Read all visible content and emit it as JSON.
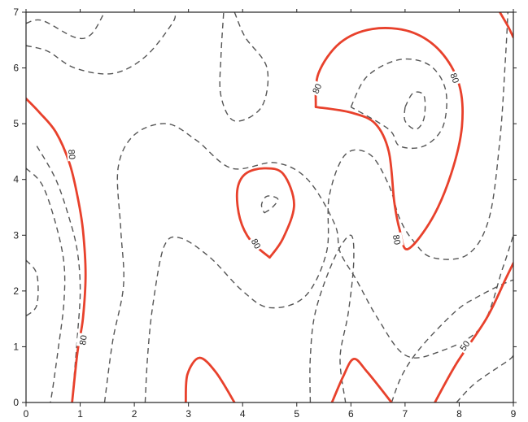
{
  "chart_data": {
    "type": "contour",
    "title": "",
    "xlabel": "",
    "ylabel": "",
    "xlim": [
      0,
      9
    ],
    "ylim": [
      0,
      7
    ],
    "x_ticks": [
      "0",
      "1",
      "2",
      "3",
      "4",
      "5",
      "6",
      "7",
      "8",
      "9"
    ],
    "y_ticks": [
      "0",
      "1",
      "2",
      "3",
      "4",
      "5",
      "6",
      "7"
    ],
    "grid": false,
    "colors": {
      "highlight": "#e8412c",
      "dashed": "#555555",
      "axis": "#222222"
    },
    "contours": [
      {
        "style": "dashed",
        "points": [
          [
            0.0,
            6.8
          ],
          [
            0.3,
            6.85
          ],
          [
            0.9,
            6.55
          ],
          [
            1.2,
            6.6
          ],
          [
            1.45,
            7.0
          ]
        ]
      },
      {
        "style": "dashed",
        "points": [
          [
            0.0,
            6.4
          ],
          [
            0.4,
            6.3
          ],
          [
            0.9,
            6.0
          ],
          [
            1.6,
            5.9
          ],
          [
            2.2,
            6.2
          ],
          [
            2.7,
            6.8
          ],
          [
            2.75,
            7.0
          ]
        ]
      },
      {
        "style": "dashed",
        "points": [
          [
            0.2,
            4.6
          ],
          [
            0.55,
            4.0
          ],
          [
            0.8,
            3.3
          ],
          [
            0.95,
            2.7
          ],
          [
            1.0,
            2.0
          ],
          [
            0.95,
            1.2
          ],
          [
            0.9,
            0.6
          ],
          [
            0.85,
            0.0
          ]
        ]
      },
      {
        "style": "dashed",
        "points": [
          [
            0.0,
            4.2
          ],
          [
            0.3,
            3.9
          ],
          [
            0.55,
            3.2
          ],
          [
            0.7,
            2.5
          ],
          [
            0.7,
            1.8
          ],
          [
            0.6,
            1.0
          ],
          [
            0.5,
            0.3
          ],
          [
            0.45,
            0.0
          ]
        ]
      },
      {
        "style": "dashed",
        "points": [
          [
            0.0,
            2.55
          ],
          [
            0.2,
            2.3
          ],
          [
            0.2,
            1.75
          ],
          [
            0.0,
            1.55
          ]
        ]
      },
      {
        "style": "dashed",
        "points": [
          [
            1.45,
            0.0
          ],
          [
            1.6,
            1.1
          ],
          [
            1.8,
            2.1
          ],
          [
            1.75,
            3.1
          ],
          [
            1.7,
            4.2
          ],
          [
            2.0,
            4.8
          ],
          [
            2.6,
            5.0
          ],
          [
            3.15,
            4.7
          ],
          [
            3.8,
            4.2
          ],
          [
            4.6,
            4.3
          ],
          [
            5.2,
            4.0
          ],
          [
            5.7,
            3.2
          ],
          [
            5.8,
            2.7
          ],
          [
            6.1,
            2.2
          ],
          [
            6.5,
            1.5
          ],
          [
            7.0,
            0.85
          ],
          [
            7.6,
            0.9
          ],
          [
            8.4,
            1.35
          ],
          [
            8.8,
            2.4
          ],
          [
            9.0,
            3.0
          ]
        ]
      },
      {
        "style": "dashed",
        "points": [
          [
            2.2,
            0.0
          ],
          [
            2.25,
            0.9
          ],
          [
            2.35,
            1.8
          ],
          [
            2.55,
            2.8
          ],
          [
            2.85,
            2.95
          ],
          [
            3.4,
            2.6
          ],
          [
            4.0,
            2.0
          ],
          [
            4.5,
            1.7
          ],
          [
            5.15,
            1.9
          ],
          [
            5.55,
            2.7
          ],
          [
            5.6,
            3.7
          ],
          [
            5.9,
            4.45
          ],
          [
            6.35,
            4.45
          ],
          [
            6.7,
            3.9
          ],
          [
            6.9,
            3.3
          ],
          [
            7.15,
            2.9
          ],
          [
            7.5,
            2.6
          ],
          [
            8.15,
            2.65
          ],
          [
            8.55,
            3.3
          ],
          [
            8.75,
            4.7
          ],
          [
            8.85,
            6.1
          ],
          [
            8.9,
            7.0
          ]
        ]
      },
      {
        "style": "dashed",
        "points": [
          [
            5.25,
            0.0
          ],
          [
            5.25,
            0.8
          ],
          [
            5.35,
            1.65
          ],
          [
            5.7,
            2.6
          ],
          [
            6.0,
            3.0
          ],
          [
            6.05,
            2.5
          ],
          [
            5.95,
            1.6
          ],
          [
            5.8,
            0.8
          ],
          [
            5.9,
            0.0
          ]
        ]
      },
      {
        "style": "dashed",
        "points": [
          [
            6.75,
            0.0
          ],
          [
            6.95,
            0.5
          ],
          [
            7.3,
            1.0
          ],
          [
            7.95,
            1.65
          ],
          [
            8.35,
            1.9
          ],
          [
            8.75,
            2.1
          ],
          [
            9.0,
            2.2
          ]
        ]
      },
      {
        "style": "dashed",
        "points": [
          [
            7.95,
            0.0
          ],
          [
            8.3,
            0.35
          ],
          [
            8.9,
            0.75
          ],
          [
            9.0,
            0.85
          ]
        ]
      },
      {
        "style": "dashed",
        "points": [
          [
            3.85,
            7.0
          ],
          [
            4.05,
            6.55
          ],
          [
            4.45,
            6.0
          ],
          [
            4.35,
            5.3
          ],
          [
            3.85,
            5.05
          ],
          [
            3.6,
            5.5
          ],
          [
            3.6,
            6.2
          ],
          [
            3.65,
            7.0
          ]
        ]
      },
      {
        "style": "dashed",
        "points": [
          [
            4.4,
            3.4
          ],
          [
            4.55,
            3.5
          ],
          [
            4.65,
            3.65
          ],
          [
            4.45,
            3.7
          ],
          [
            4.35,
            3.55
          ],
          [
            4.4,
            3.4
          ]
        ]
      },
      {
        "style": "dashed",
        "points": [
          [
            6.0,
            5.3
          ],
          [
            6.3,
            5.85
          ],
          [
            6.9,
            6.15
          ],
          [
            7.45,
            6.05
          ],
          [
            7.75,
            5.6
          ],
          [
            7.7,
            4.95
          ],
          [
            7.35,
            4.6
          ],
          [
            6.9,
            4.6
          ],
          [
            6.7,
            4.9
          ],
          [
            6.0,
            5.3
          ]
        ]
      },
      {
        "style": "dashed",
        "points": [
          [
            7.0,
            5.3
          ],
          [
            7.15,
            5.55
          ],
          [
            7.35,
            5.5
          ],
          [
            7.35,
            5.1
          ],
          [
            7.2,
            4.9
          ],
          [
            7.0,
            5.05
          ],
          [
            7.0,
            5.3
          ]
        ]
      },
      {
        "style": "solid",
        "points": [
          [
            0.0,
            5.45
          ],
          [
            0.25,
            5.2
          ],
          [
            0.55,
            4.85
          ],
          [
            0.8,
            4.3
          ],
          [
            0.95,
            3.7
          ],
          [
            1.05,
            3.1
          ],
          [
            1.1,
            2.3
          ],
          [
            1.05,
            1.5
          ],
          [
            0.95,
            0.9
          ],
          [
            0.85,
            0.0
          ]
        ]
      },
      {
        "style": "solid",
        "points": [
          [
            4.5,
            2.6
          ],
          [
            4.15,
            2.9
          ],
          [
            3.95,
            3.3
          ],
          [
            3.9,
            3.8
          ],
          [
            4.05,
            4.1
          ],
          [
            4.4,
            4.2
          ],
          [
            4.75,
            4.1
          ],
          [
            4.95,
            3.55
          ],
          [
            4.75,
            2.95
          ],
          [
            4.5,
            2.6
          ]
        ]
      },
      {
        "style": "solid",
        "points": [
          [
            5.35,
            5.3
          ],
          [
            5.4,
            5.9
          ],
          [
            5.8,
            6.45
          ],
          [
            6.4,
            6.7
          ],
          [
            7.1,
            6.65
          ],
          [
            7.65,
            6.3
          ],
          [
            8.0,
            5.7
          ],
          [
            8.05,
            4.95
          ],
          [
            7.85,
            4.1
          ],
          [
            7.5,
            3.3
          ],
          [
            7.05,
            2.75
          ],
          [
            6.9,
            3.1
          ],
          [
            6.8,
            3.6
          ],
          [
            6.7,
            4.5
          ],
          [
            6.45,
            5.0
          ],
          [
            6.0,
            5.2
          ],
          [
            5.35,
            5.3
          ]
        ]
      },
      {
        "style": "solid",
        "points": [
          [
            2.95,
            0.0
          ],
          [
            2.98,
            0.5
          ],
          [
            3.2,
            0.8
          ],
          [
            3.5,
            0.55
          ],
          [
            3.85,
            0.0
          ]
        ]
      },
      {
        "style": "solid",
        "points": [
          [
            5.65,
            0.0
          ],
          [
            5.85,
            0.45
          ],
          [
            6.05,
            0.78
          ],
          [
            6.3,
            0.55
          ],
          [
            6.75,
            0.0
          ]
        ]
      },
      {
        "style": "solid",
        "points": [
          [
            7.55,
            0.0
          ],
          [
            7.95,
            0.7
          ],
          [
            8.5,
            1.5
          ],
          [
            8.85,
            2.2
          ],
          [
            9.0,
            2.5
          ]
        ]
      },
      {
        "style": "solid",
        "points": [
          [
            8.75,
            7.0
          ],
          [
            8.9,
            6.75
          ],
          [
            9.0,
            6.55
          ]
        ]
      }
    ],
    "labels": [
      {
        "text": "80",
        "x": 0.85,
        "y": 4.45,
        "angle": 85
      },
      {
        "text": "80",
        "x": 1.05,
        "y": 1.12,
        "angle": -82
      },
      {
        "text": "80",
        "x": 4.25,
        "y": 2.85,
        "angle": 60
      },
      {
        "text": "80",
        "x": 5.37,
        "y": 5.63,
        "angle": -65
      },
      {
        "text": "80",
        "x": 7.92,
        "y": 5.82,
        "angle": 70
      },
      {
        "text": "80",
        "x": 6.85,
        "y": 2.92,
        "angle": 80
      },
      {
        "text": "50",
        "x": 8.1,
        "y": 1.02,
        "angle": -55
      }
    ]
  }
}
